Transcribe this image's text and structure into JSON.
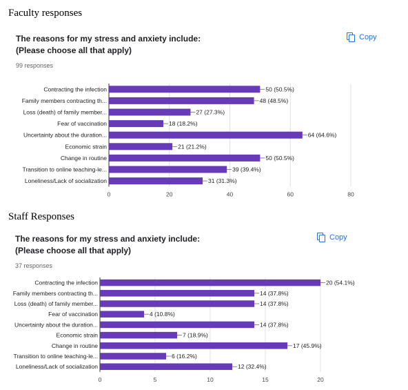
{
  "faculty": {
    "heading": "Faculty responses",
    "title_line1": "The reasons for my stress and anxiety include:",
    "title_line2": "(Please choose all that apply)",
    "responses": "99 responses",
    "copy_label": "Copy"
  },
  "staff": {
    "heading": "Staff Responses",
    "title_line1": "The reasons for my stress and anxiety include:",
    "title_line2": "(Please choose all that apply)",
    "responses": "37 responses",
    "copy_label": "Copy"
  },
  "colors": {
    "bar": "#673ab7",
    "accent": "#1a73e8",
    "grid": "#e0e0e0"
  },
  "chart_data": [
    {
      "type": "bar",
      "orientation": "horizontal",
      "categories": [
        "Contracting the infection",
        "Family members contracting th...",
        "Loss (death) of family member...",
        "Fear of vaccination",
        "Uncertainty about the duration...",
        "Economic strain",
        "Change in routine",
        "Transition to online teaching-le...",
        "Loneliness/Lack of socialization"
      ],
      "values": [
        50,
        48,
        27,
        18,
        64,
        21,
        50,
        39,
        31
      ],
      "data_labels": [
        "50 (50.5%)",
        "48 (48.5%)",
        "27 (27.3%)",
        "18 (18.2%)",
        "64 (64.6%)",
        "21 (21.2%)",
        "50 (50.5%)",
        "39 (39.4%)",
        "31 (31.3%)"
      ],
      "xlim": [
        0,
        80
      ],
      "xticks": [
        0,
        20,
        40,
        60,
        80
      ],
      "grid": true
    },
    {
      "type": "bar",
      "orientation": "horizontal",
      "categories": [
        "Contracting the infection",
        "Family members contracting th...",
        "Loss (death) of family member...",
        "Fear of vaccination",
        "Uncertainty about the duration...",
        "Economic strain",
        "Change in routine",
        "Transition to online teaching-le...",
        "Loneliness/Lack of socialization"
      ],
      "values": [
        20,
        14,
        14,
        4,
        14,
        7,
        17,
        6,
        12
      ],
      "data_labels": [
        "20 (54.1%)",
        "14 (37.8%)",
        "14 (37.8%)",
        "4 (10.8%)",
        "14 (37.8%)",
        "7 (18.9%)",
        "17 (45.9%)",
        "6 (16.2%)",
        "12 (32.4%)"
      ],
      "xlim": [
        0,
        20
      ],
      "xticks": [
        0,
        5,
        10,
        15,
        20
      ],
      "grid": true
    }
  ]
}
